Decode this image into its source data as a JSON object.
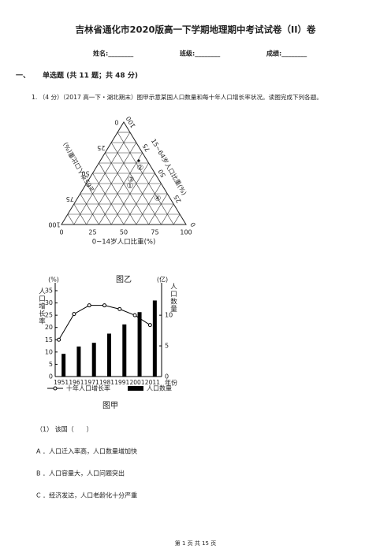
{
  "header": {
    "title": "吉林省通化市2020版高一下学期地理期中考试试卷（II）卷",
    "fields": [
      "姓名:________",
      "班级:________",
      "成绩:________"
    ]
  },
  "section": {
    "number": "一、",
    "title": "单选题 (共 11 题；共 48 分)"
  },
  "question": {
    "stem": "1. （4 分）（2017 高一下・湖北期末）图甲示意某国人口数量和每十年人口增长率状况。读图完成下列各题。",
    "sub": "（1） 该国（　　）",
    "options": [
      "A ．人口迁入率高，人口数量增加快",
      "B ．人口容量大，人口问题突出",
      "C ．经济发达，人口老龄化十分严重"
    ]
  },
  "figure_b": {
    "type": "ternary",
    "caption": "图乙",
    "bottom_label": "0~14岁人口比重(%)",
    "left_label": "≥65岁人口比重(%)",
    "right_label": "15~64岁人口比重(%)",
    "ticks": [
      0,
      25,
      50,
      75,
      100
    ],
    "points": [
      "①",
      "②",
      "③",
      "④"
    ]
  },
  "figure_a": {
    "type": "bar-line",
    "caption": "图甲",
    "categories": [
      "1951",
      "1961",
      "1971",
      "1981",
      "1991",
      "2001",
      "2011"
    ],
    "x_label": "年份",
    "y_label": "人口增长率",
    "y_unit": "(%)",
    "ylim": [
      0,
      35
    ],
    "yticks": [
      0,
      5,
      10,
      15,
      20,
      25,
      30,
      35
    ],
    "y2_label": "人口数量",
    "y2_unit": "(亿)",
    "y2lim": [
      0,
      14
    ],
    "y2ticks": [
      0,
      5,
      10
    ],
    "series": [
      {
        "name": "十年人口增长率",
        "type": "line",
        "color": "#000000",
        "values": [
          15,
          25.5,
          29,
          29,
          27.5,
          25,
          21
        ]
      },
      {
        "name": "人口数量",
        "type": "bar",
        "axis": "y2",
        "color": "#000000",
        "values": [
          3.7,
          4.9,
          5.5,
          7,
          8.5,
          10.5,
          12.4
        ]
      }
    ]
  },
  "footer": {
    "page": "第 1 页 共 15 页"
  }
}
